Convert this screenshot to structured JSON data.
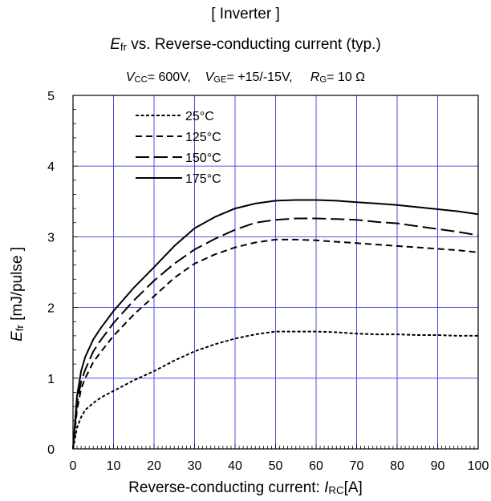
{
  "title": {
    "line1": "[ Inverter ]",
    "line2_symbol": "E",
    "line2_sub": "fr",
    "line2_rest": " vs.  Reverse-conducting current  (typ.)",
    "conditions": [
      {
        "sym": "V",
        "sub": "CC",
        "val": "= 600V,"
      },
      {
        "sym": "V",
        "sub": "GE",
        "val": "= +15/-15V,"
      },
      {
        "sym": "R",
        "sub": "G",
        "val": "= 10 Ω"
      }
    ]
  },
  "axes": {
    "xlabel_text": "Reverse-conducting current: ",
    "xlabel_sym": "I",
    "xlabel_sub": "RC",
    "xlabel_unit": "[A]",
    "ylabel_sym": "E",
    "ylabel_sub": "fr",
    "ylabel_unit": " [mJ/pulse ]"
  },
  "chart_data": {
    "type": "line",
    "xlim": [
      0,
      100
    ],
    "ylim": [
      0,
      5
    ],
    "xticks": [
      0,
      10,
      20,
      30,
      40,
      50,
      60,
      70,
      80,
      90,
      100
    ],
    "yticks": [
      0,
      1,
      2,
      3,
      4,
      5
    ],
    "grid": true,
    "legend_position": "top-left",
    "series": [
      {
        "name": "25°C",
        "dash": "short",
        "x": [
          0,
          1,
          2,
          3,
          5,
          7,
          10,
          15,
          20,
          25,
          30,
          35,
          40,
          45,
          50,
          55,
          60,
          65,
          70,
          75,
          80,
          85,
          90,
          95,
          100
        ],
        "y": [
          0,
          0.3,
          0.45,
          0.55,
          0.65,
          0.73,
          0.82,
          0.97,
          1.1,
          1.25,
          1.38,
          1.48,
          1.56,
          1.62,
          1.66,
          1.66,
          1.66,
          1.65,
          1.63,
          1.62,
          1.62,
          1.61,
          1.61,
          1.6,
          1.6
        ]
      },
      {
        "name": "125°C",
        "dash": "medium",
        "x": [
          0,
          1,
          2,
          3,
          5,
          7,
          10,
          15,
          20,
          25,
          30,
          35,
          40,
          45,
          50,
          55,
          60,
          65,
          70,
          75,
          80,
          85,
          90,
          95,
          100
        ],
        "y": [
          0,
          0.55,
          0.85,
          1.0,
          1.23,
          1.38,
          1.6,
          1.9,
          2.16,
          2.42,
          2.62,
          2.75,
          2.85,
          2.92,
          2.96,
          2.96,
          2.95,
          2.93,
          2.91,
          2.89,
          2.87,
          2.85,
          2.83,
          2.81,
          2.78
        ]
      },
      {
        "name": "150°C",
        "dash": "long",
        "x": [
          0,
          1,
          2,
          3,
          5,
          7,
          10,
          15,
          20,
          25,
          30,
          35,
          40,
          45,
          50,
          55,
          60,
          65,
          70,
          75,
          80,
          85,
          90,
          95,
          100
        ],
        "y": [
          0,
          0.65,
          0.95,
          1.12,
          1.38,
          1.55,
          1.78,
          2.1,
          2.38,
          2.62,
          2.82,
          2.97,
          3.1,
          3.2,
          3.24,
          3.26,
          3.26,
          3.25,
          3.24,
          3.21,
          3.19,
          3.15,
          3.11,
          3.07,
          3.02
        ]
      },
      {
        "name": "175°C",
        "dash": "solid",
        "x": [
          0,
          1,
          2,
          3,
          5,
          7,
          10,
          15,
          20,
          25,
          30,
          35,
          40,
          45,
          50,
          55,
          60,
          65,
          70,
          75,
          80,
          85,
          90,
          95,
          100
        ],
        "y": [
          0,
          0.75,
          1.1,
          1.3,
          1.55,
          1.72,
          1.95,
          2.28,
          2.57,
          2.87,
          3.12,
          3.28,
          3.4,
          3.47,
          3.51,
          3.52,
          3.52,
          3.51,
          3.49,
          3.47,
          3.45,
          3.42,
          3.39,
          3.36,
          3.32
        ]
      }
    ]
  }
}
